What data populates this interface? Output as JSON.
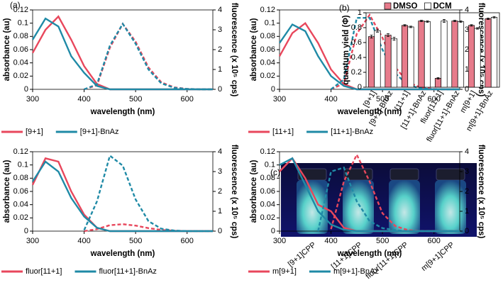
{
  "chart_data": [
    {
      "type": "line",
      "panel_label": "(a)",
      "xlabel": "wavelength (nm)",
      "ylabel": "absorbance (au)",
      "y2label": "fluorescence (x 10⁵ cps)",
      "x": [
        300,
        325,
        350,
        375,
        400,
        425,
        450,
        475,
        500,
        525,
        550,
        575,
        600,
        625,
        650
      ],
      "xlim": [
        300,
        650
      ],
      "xticks": [
        300,
        400,
        500,
        600
      ],
      "ylim": [
        0,
        0.12
      ],
      "yticks": [
        0,
        0.02,
        0.04,
        0.06,
        0.08,
        0.1,
        0.12
      ],
      "y2lim": [
        0,
        4
      ],
      "y2ticks": [
        0,
        1,
        2,
        3,
        4
      ],
      "series": [
        {
          "name": "[9+1]",
          "color": "#e8475c",
          "values": [
            0.055,
            0.09,
            0.11,
            0.075,
            0.035,
            0.008,
            0,
            0,
            0,
            0,
            0,
            0,
            0,
            0,
            0
          ],
          "y2_values": [
            null,
            null,
            null,
            null,
            0,
            0.2,
            2.1,
            3.3,
            2.4,
            1.1,
            0.35,
            0.1,
            0.02,
            0,
            0
          ]
        },
        {
          "name": "[9+1]-BnAz",
          "color": "#1f8aa6",
          "values": [
            0.075,
            0.107,
            0.095,
            0.05,
            0.025,
            0.005,
            0,
            0,
            0,
            0,
            0,
            0,
            0,
            0,
            0
          ],
          "y2_values": [
            null,
            null,
            null,
            null,
            0,
            0.25,
            2.2,
            3.3,
            2.3,
            1.0,
            0.3,
            0.08,
            0.02,
            0,
            0
          ]
        }
      ]
    },
    {
      "type": "line",
      "xlabel": "wavelength (nm)",
      "ylabel": "absorbance (au)",
      "y2label": "fluorescence (x 10⁵ cps)",
      "x": [
        300,
        325,
        350,
        375,
        400,
        425,
        450,
        475,
        500,
        525,
        550,
        575,
        600,
        625,
        650
      ],
      "xlim": [
        300,
        650
      ],
      "xticks": [
        300,
        400,
        500,
        600
      ],
      "ylim": [
        0,
        0.12
      ],
      "yticks": [
        0,
        0.02,
        0.04,
        0.06,
        0.08,
        0.1,
        0.12
      ],
      "y2lim": [
        0,
        4
      ],
      "y2ticks": [
        0,
        1,
        2,
        3,
        4
      ],
      "series": [
        {
          "name": "[11+1]",
          "color": "#e8475c",
          "values": [
            0.05,
            0.085,
            0.1,
            0.07,
            0.03,
            0.008,
            0,
            0,
            0,
            0,
            0,
            0,
            0,
            0,
            0
          ],
          "y2_values": [
            null,
            null,
            null,
            null,
            0,
            0.3,
            2.8,
            3.75,
            2.6,
            1.1,
            0.35,
            0.08,
            0.02,
            0,
            0
          ]
        },
        {
          "name": "[11+1]-BnAz",
          "color": "#1f8aa6",
          "values": [
            0.07,
            0.098,
            0.088,
            0.05,
            0.02,
            0.005,
            0,
            0,
            0,
            0,
            0,
            0,
            0,
            0,
            0
          ],
          "y2_values": [
            null,
            null,
            null,
            null,
            0,
            0.5,
            3.6,
            3.6,
            2.0,
            0.8,
            0.2,
            0.05,
            0,
            0,
            0
          ]
        }
      ]
    },
    {
      "type": "line",
      "xlabel": "wavelength (nm)",
      "ylabel": "absorbance (au)",
      "y2label": "fluorescence (x 10⁵ cps)",
      "x": [
        300,
        325,
        350,
        375,
        400,
        425,
        450,
        475,
        500,
        525,
        550,
        575,
        600,
        625,
        650
      ],
      "xlim": [
        300,
        650
      ],
      "xticks": [
        300,
        400,
        500,
        600
      ],
      "ylim": [
        0,
        0.12
      ],
      "yticks": [
        0,
        0.02,
        0.04,
        0.06,
        0.08,
        0.1,
        0.12
      ],
      "y2lim": [
        0,
        4
      ],
      "y2ticks": [
        0,
        1,
        2,
        3,
        4
      ],
      "series": [
        {
          "name": "fluor[11+1]",
          "color": "#e8475c",
          "values": [
            0.07,
            0.11,
            0.105,
            0.06,
            0.025,
            0.005,
            0,
            0,
            0,
            0,
            0,
            0,
            0,
            0,
            0
          ],
          "y2_values": [
            null,
            null,
            null,
            null,
            0,
            0.1,
            0.3,
            0.35,
            0.28,
            0.15,
            0.06,
            0.02,
            0,
            0,
            0
          ]
        },
        {
          "name": "fluor[11+1]-BnAz",
          "color": "#1f8aa6",
          "values": [
            0.075,
            0.105,
            0.09,
            0.05,
            0.022,
            0.005,
            0,
            0,
            0,
            0,
            0,
            0,
            0,
            0,
            0
          ],
          "y2_values": [
            null,
            null,
            null,
            null,
            0.05,
            1.5,
            3.8,
            3.3,
            1.6,
            0.5,
            0.12,
            0.03,
            0,
            0,
            0
          ]
        }
      ]
    },
    {
      "type": "line",
      "xlabel": "wavelength (nm)",
      "ylabel": "absorbance (au)",
      "y2label": "fluorescence (x 10⁵ cps)",
      "x": [
        300,
        325,
        350,
        375,
        400,
        425,
        450,
        475,
        500,
        525,
        550,
        575,
        600,
        625,
        650
      ],
      "xlim": [
        300,
        650
      ],
      "xticks": [
        300,
        400,
        500,
        600
      ],
      "ylim": [
        0,
        0.12
      ],
      "yticks": [
        0,
        0.02,
        0.04,
        0.06,
        0.08,
        0.1,
        0.12
      ],
      "y2lim": [
        0,
        4
      ],
      "y2ticks": [
        0,
        1,
        2,
        3,
        4
      ],
      "series": [
        {
          "name": "m[9+1]",
          "color": "#e8475c",
          "values": [
            0.09,
            0.11,
            0.08,
            0.04,
            0.03,
            0.005,
            0,
            0,
            0,
            0,
            0,
            0,
            0,
            0,
            0
          ],
          "y2_values": [
            null,
            null,
            null,
            null,
            0.1,
            2.5,
            3.85,
            2.5,
            0.9,
            0.25,
            0.05,
            0,
            0,
            0,
            0
          ]
        },
        {
          "name": "m[9+1]-BnAz",
          "color": "#1f8aa6",
          "values": [
            0.1,
            0.11,
            0.07,
            0.03,
            0.01,
            0.002,
            0,
            0,
            0,
            0,
            0,
            0,
            0,
            0,
            0
          ],
          "y2_values": [
            null,
            null,
            null,
            0,
            3.0,
            3.2,
            1.5,
            0.5,
            0.15,
            0.05,
            0,
            0,
            0,
            0,
            0
          ]
        }
      ]
    },
    {
      "type": "bar",
      "panel_label": "(b)",
      "ylabel": "quantum yield (Φ)",
      "categories": [
        "[9+1]",
        "[9+1]-BnAz",
        "[11+1]",
        "[11+1]-BnAz",
        "fluor[11+1]",
        "fluor[11+1]-BnAz",
        "m[9+1]",
        "m[9+1]-BnAz"
      ],
      "ylim": [
        0,
        1
      ],
      "yticks": [
        0,
        0.2,
        0.4,
        0.6,
        0.8,
        1
      ],
      "series": [
        {
          "name": "DMSO",
          "color": "#e77b8b",
          "values": [
            0.68,
            0.7,
            0.83,
            0.89,
            0.12,
            0.89,
            0.83,
            0.92
          ],
          "errors": [
            0.02,
            0.02,
            0.01,
            0.01,
            0.01,
            0.01,
            0.01,
            0.01
          ]
        },
        {
          "name": "DCM",
          "color": "#ffffff",
          "values": [
            0.76,
            0.65,
            0.81,
            0.88,
            0.89,
            0.88,
            0.79,
            0.94
          ],
          "errors": [
            0.02,
            0.02,
            0.01,
            0.01,
            0.02,
            0.01,
            0.01,
            0.01
          ]
        }
      ]
    }
  ],
  "photo": {
    "panel_label": "(c)",
    "labels": [
      "[9+1]CPP",
      "[11+1]CPP",
      "fluor[11+1]CPP",
      "m[9+1]CPP"
    ]
  }
}
